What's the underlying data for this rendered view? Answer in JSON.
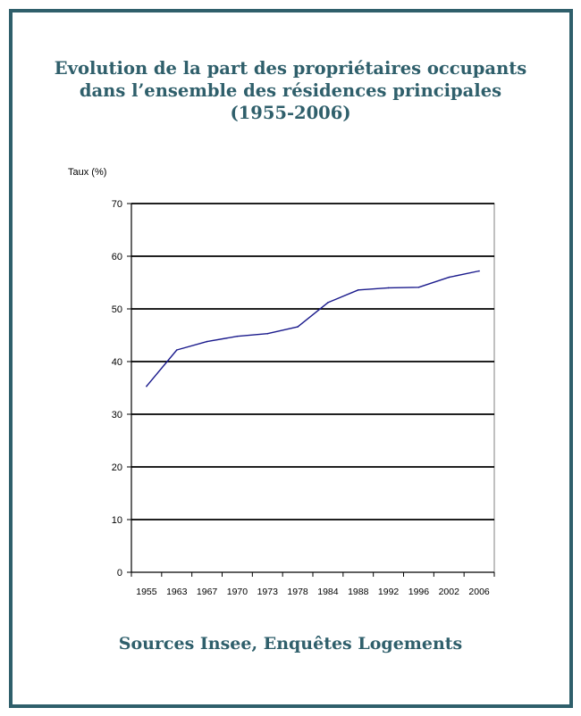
{
  "colors": {
    "frame": "#2f5f6b",
    "title": "#2f5f6b",
    "line": "#1a1a8c",
    "grid": "#000000"
  },
  "title_lines": [
    "Evolution de la part des propriétaires occupants",
    "dans l’ensemble des résidences principales",
    "(1955-2006)"
  ],
  "source": "Sources Insee, Enquêtes Logements",
  "chart_data": {
    "type": "line",
    "title": "Evolution de la part des propriétaires occupants dans l’ensemble des résidences principales (1955-2006)",
    "ylabel": "Taux (%)",
    "xlabel": "",
    "ylim": [
      0,
      70
    ],
    "yticks": [
      0,
      10,
      20,
      30,
      40,
      50,
      60,
      70
    ],
    "grid": true,
    "legend": "none",
    "categories": [
      "1955",
      "1963",
      "1967",
      "1970",
      "1973",
      "1978",
      "1984",
      "1988",
      "1992",
      "1996",
      "2002",
      "2006"
    ],
    "series": [
      {
        "values": [
          35.3,
          42.2,
          43.8,
          44.8,
          45.3,
          46.6,
          51.2,
          53.6,
          54.0,
          54.1,
          56.0,
          57.2
        ]
      }
    ]
  }
}
